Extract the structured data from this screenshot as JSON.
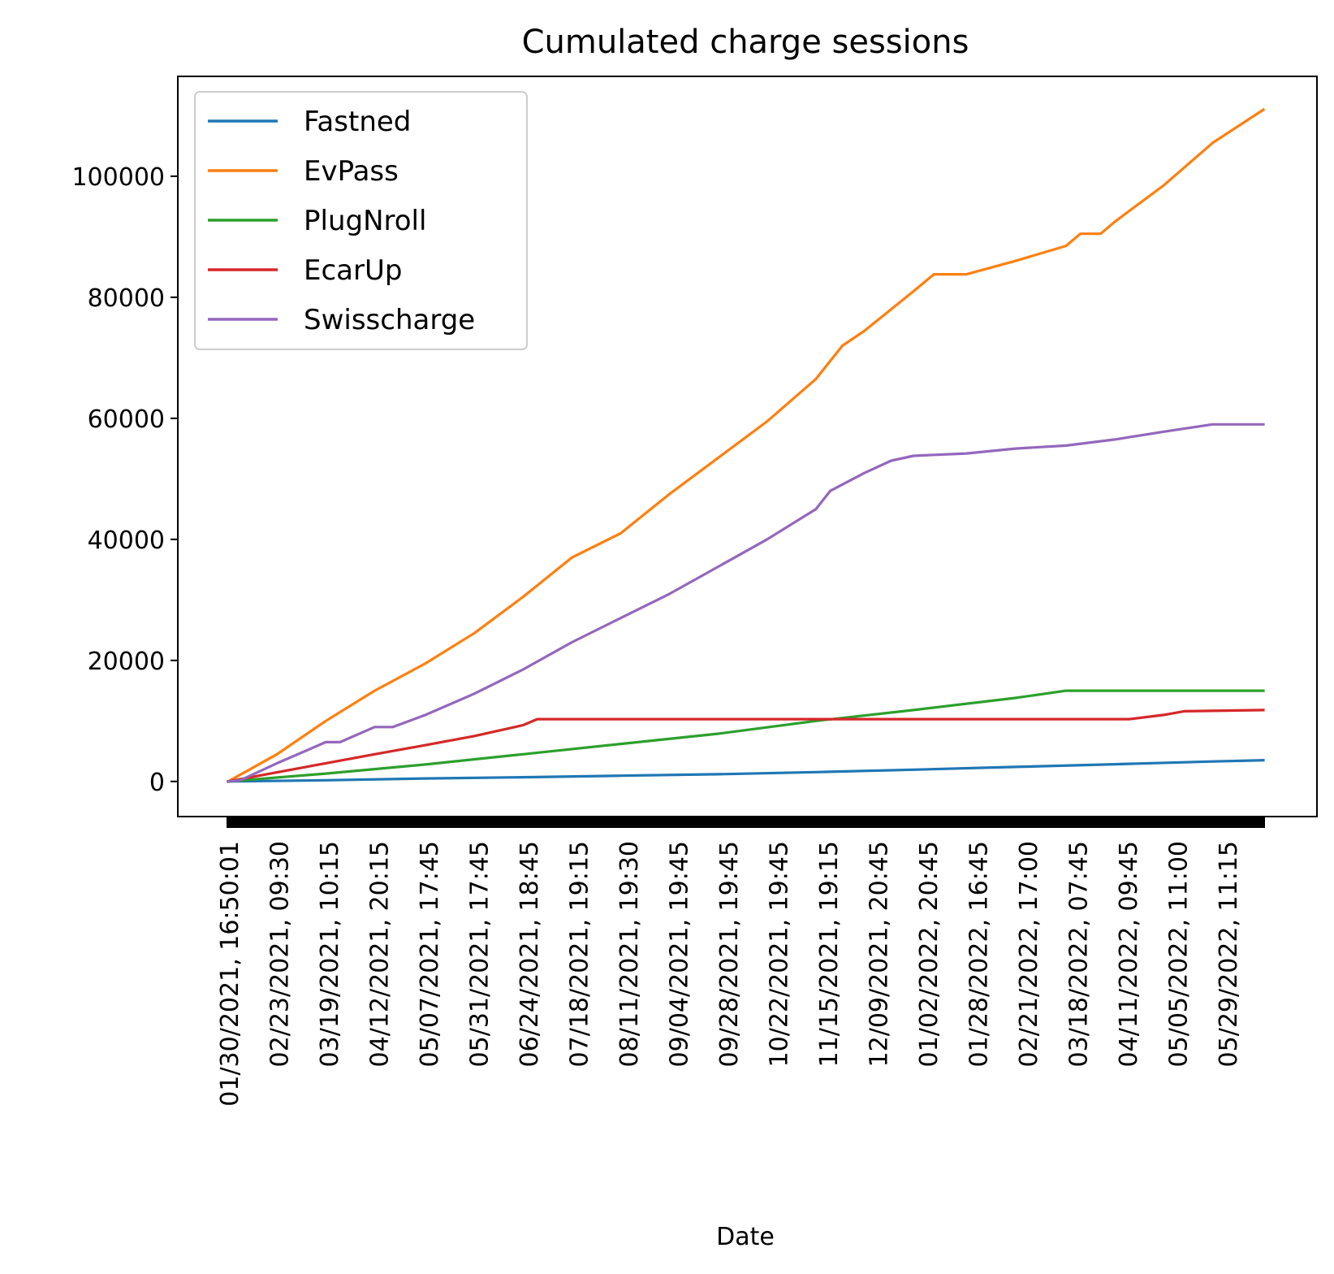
{
  "chart_data": {
    "type": "line",
    "title": "Cumulated charge sessions",
    "xlabel": "Date",
    "ylabel": "",
    "ylim": [
      -5800,
      116500
    ],
    "yticks": [
      0,
      20000,
      40000,
      60000,
      80000,
      100000
    ],
    "x_range": [
      "2021-01-30",
      "2022-06-23"
    ],
    "x_tick_labels": [
      "01/30/2021, 16:50:01",
      "02/23/2021, 09:30",
      "03/19/2021, 10:15",
      "04/12/2021, 20:15",
      "05/07/2021, 17:45",
      "05/31/2021, 17:45",
      "06/24/2021, 18:45",
      "07/18/2021, 19:15",
      "08/11/2021, 19:30",
      "09/04/2021, 19:45",
      "09/28/2021, 19:45",
      "10/22/2021, 19:45",
      "11/15/2021, 19:15",
      "12/09/2021, 20:45",
      "01/02/2022, 20:45",
      "01/28/2022, 16:45",
      "02/21/2022, 17:00",
      "03/18/2022, 07:45",
      "04/11/2022, 09:45",
      "05/05/2022, 11:00",
      "05/29/2022, 11:15"
    ],
    "grid": false,
    "legend_position": "upper-left",
    "series": [
      {
        "name": "Fastned",
        "color": "#1f77b4",
        "points": [
          [
            "2021-01-30",
            0
          ],
          [
            "2021-03-19",
            200
          ],
          [
            "2021-05-07",
            500
          ],
          [
            "2021-06-24",
            700
          ],
          [
            "2021-08-11",
            950
          ],
          [
            "2021-09-28",
            1200
          ],
          [
            "2021-11-15",
            1550
          ],
          [
            "2022-01-02",
            1950
          ],
          [
            "2022-02-21",
            2400
          ],
          [
            "2022-04-11",
            2850
          ],
          [
            "2022-05-29",
            3300
          ],
          [
            "2022-06-23",
            3500
          ]
        ]
      },
      {
        "name": "EvPass",
        "color": "#ff7f0e",
        "points": [
          [
            "2021-01-30",
            0
          ],
          [
            "2021-02-23",
            4500
          ],
          [
            "2021-03-19",
            10000
          ],
          [
            "2021-04-12",
            15000
          ],
          [
            "2021-05-07",
            19500
          ],
          [
            "2021-05-31",
            24500
          ],
          [
            "2021-06-24",
            30500
          ],
          [
            "2021-07-18",
            37000
          ],
          [
            "2021-08-11",
            41000
          ],
          [
            "2021-09-04",
            47500
          ],
          [
            "2021-09-28",
            53500
          ],
          [
            "2021-10-22",
            59500
          ],
          [
            "2021-11-15",
            66500
          ],
          [
            "2021-11-28",
            72000
          ],
          [
            "2021-12-09",
            74500
          ],
          [
            "2022-01-02",
            81000
          ],
          [
            "2022-01-12",
            83800
          ],
          [
            "2022-01-28",
            83800
          ],
          [
            "2022-02-21",
            86000
          ],
          [
            "2022-03-18",
            88500
          ],
          [
            "2022-03-25",
            90500
          ],
          [
            "2022-04-04",
            90500
          ],
          [
            "2022-04-11",
            92500
          ],
          [
            "2022-05-05",
            98500
          ],
          [
            "2022-05-29",
            105500
          ],
          [
            "2022-06-23",
            111000
          ]
        ]
      },
      {
        "name": "PlugNroll",
        "color": "#2ca02c",
        "points": [
          [
            "2021-01-30",
            0
          ],
          [
            "2021-03-19",
            1300
          ],
          [
            "2021-05-07",
            2800
          ],
          [
            "2021-06-24",
            4500
          ],
          [
            "2021-08-11",
            6200
          ],
          [
            "2021-09-28",
            7900
          ],
          [
            "2021-11-15",
            10000
          ],
          [
            "2022-01-02",
            11800
          ],
          [
            "2022-02-21",
            13800
          ],
          [
            "2022-03-18",
            15000
          ],
          [
            "2022-06-23",
            15000
          ]
        ]
      },
      {
        "name": "EcarUp",
        "color": "#d62728",
        "points": [
          [
            "2021-01-30",
            0
          ],
          [
            "2021-02-23",
            1500
          ],
          [
            "2021-03-19",
            3000
          ],
          [
            "2021-04-12",
            4500
          ],
          [
            "2021-05-07",
            6000
          ],
          [
            "2021-05-31",
            7500
          ],
          [
            "2021-06-24",
            9300
          ],
          [
            "2021-07-01",
            10300
          ],
          [
            "2022-04-18",
            10300
          ],
          [
            "2022-05-05",
            11000
          ],
          [
            "2022-05-15",
            11600
          ],
          [
            "2022-06-23",
            11800
          ]
        ]
      },
      {
        "name": "Swisscharge",
        "color": "#9467bd",
        "points": [
          [
            "2021-01-30",
            0
          ],
          [
            "2021-02-05",
            200
          ],
          [
            "2021-02-23",
            3000
          ],
          [
            "2021-03-19",
            6500
          ],
          [
            "2021-03-26",
            6500
          ],
          [
            "2021-04-12",
            9000
          ],
          [
            "2021-04-21",
            9000
          ],
          [
            "2021-05-07",
            11000
          ],
          [
            "2021-05-31",
            14500
          ],
          [
            "2021-06-24",
            18500
          ],
          [
            "2021-07-18",
            23000
          ],
          [
            "2021-08-11",
            27000
          ],
          [
            "2021-09-04",
            31000
          ],
          [
            "2021-09-28",
            35500
          ],
          [
            "2021-10-22",
            40000
          ],
          [
            "2021-11-15",
            45000
          ],
          [
            "2021-11-22",
            48000
          ],
          [
            "2021-12-09",
            51000
          ],
          [
            "2021-12-22",
            53000
          ],
          [
            "2022-01-02",
            53800
          ],
          [
            "2022-01-28",
            54200
          ],
          [
            "2022-02-21",
            55000
          ],
          [
            "2022-03-18",
            55500
          ],
          [
            "2022-04-11",
            56500
          ],
          [
            "2022-05-05",
            57800
          ],
          [
            "2022-05-29",
            59000
          ],
          [
            "2022-06-23",
            59000
          ]
        ]
      }
    ]
  }
}
